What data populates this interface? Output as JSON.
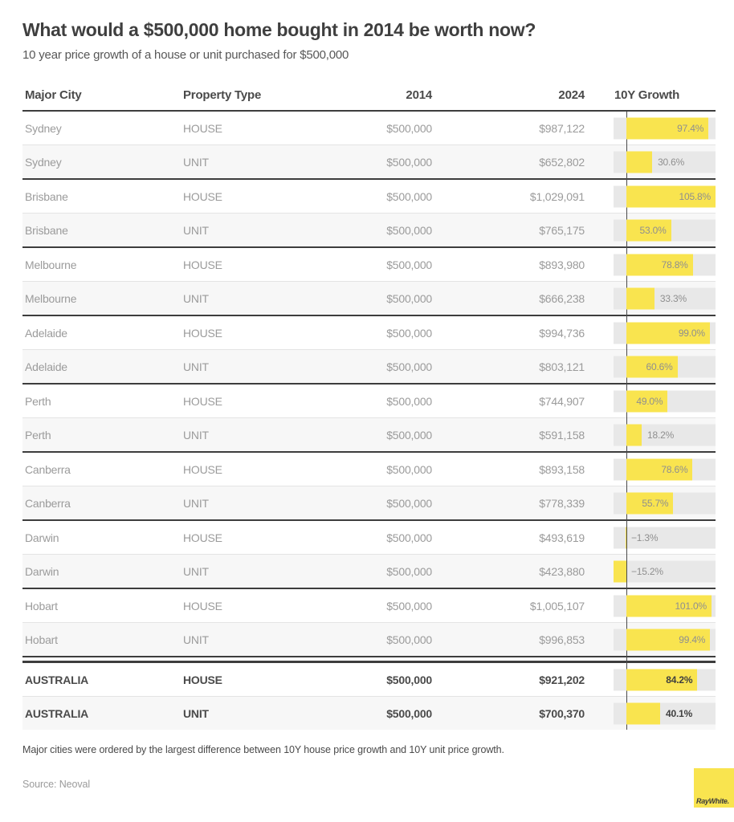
{
  "title": "What would a $500,000 home bought in 2014 be worth now?",
  "subtitle": "10 year price growth of a house or unit purchased for $500,000",
  "columns": {
    "city": "Major City",
    "type": "Property Type",
    "y2014": "2014",
    "y2024": "2024",
    "growth": "10Y Growth"
  },
  "rows": [
    {
      "city": "Sydney",
      "type": "HOUSE",
      "v2014": "$500,000",
      "v2024": "$987,122",
      "growth": 97.4,
      "growth_label": "97.4%",
      "bold": false
    },
    {
      "city": "Sydney",
      "type": "UNIT",
      "v2014": "$500,000",
      "v2024": "$652,802",
      "growth": 30.6,
      "growth_label": "30.6%",
      "bold": false
    },
    {
      "city": "Brisbane",
      "type": "HOUSE",
      "v2014": "$500,000",
      "v2024": "$1,029,091",
      "growth": 105.8,
      "growth_label": "105.8%",
      "bold": false
    },
    {
      "city": "Brisbane",
      "type": "UNIT",
      "v2014": "$500,000",
      "v2024": "$765,175",
      "growth": 53.0,
      "growth_label": "53.0%",
      "bold": false
    },
    {
      "city": "Melbourne",
      "type": "HOUSE",
      "v2014": "$500,000",
      "v2024": "$893,980",
      "growth": 78.8,
      "growth_label": "78.8%",
      "bold": false
    },
    {
      "city": "Melbourne",
      "type": "UNIT",
      "v2014": "$500,000",
      "v2024": "$666,238",
      "growth": 33.3,
      "growth_label": "33.3%",
      "bold": false
    },
    {
      "city": "Adelaide",
      "type": "HOUSE",
      "v2014": "$500,000",
      "v2024": "$994,736",
      "growth": 99.0,
      "growth_label": "99.0%",
      "bold": false
    },
    {
      "city": "Adelaide",
      "type": "UNIT",
      "v2014": "$500,000",
      "v2024": "$803,121",
      "growth": 60.6,
      "growth_label": "60.6%",
      "bold": false
    },
    {
      "city": "Perth",
      "type": "HOUSE",
      "v2014": "$500,000",
      "v2024": "$744,907",
      "growth": 49.0,
      "growth_label": "49.0%",
      "bold": false
    },
    {
      "city": "Perth",
      "type": "UNIT",
      "v2014": "$500,000",
      "v2024": "$591,158",
      "growth": 18.2,
      "growth_label": "18.2%",
      "bold": false
    },
    {
      "city": "Canberra",
      "type": "HOUSE",
      "v2014": "$500,000",
      "v2024": "$893,158",
      "growth": 78.6,
      "growth_label": "78.6%",
      "bold": false
    },
    {
      "city": "Canberra",
      "type": "UNIT",
      "v2014": "$500,000",
      "v2024": "$778,339",
      "growth": 55.7,
      "growth_label": "55.7%",
      "bold": false
    },
    {
      "city": "Darwin",
      "type": "HOUSE",
      "v2014": "$500,000",
      "v2024": "$493,619",
      "growth": -1.3,
      "growth_label": "−1.3%",
      "bold": false
    },
    {
      "city": "Darwin",
      "type": "UNIT",
      "v2014": "$500,000",
      "v2024": "$423,880",
      "growth": -15.2,
      "growth_label": "−15.2%",
      "bold": false
    },
    {
      "city": "Hobart",
      "type": "HOUSE",
      "v2014": "$500,000",
      "v2024": "$1,005,107",
      "growth": 101.0,
      "growth_label": "101.0%",
      "bold": false
    },
    {
      "city": "Hobart",
      "type": "UNIT",
      "v2014": "$500,000",
      "v2024": "$996,853",
      "growth": 99.4,
      "growth_label": "99.4%",
      "bold": false
    },
    {
      "city": "AUSTRALIA",
      "type": "HOUSE",
      "v2014": "$500,000",
      "v2024": "$921,202",
      "growth": 84.2,
      "growth_label": "84.2%",
      "bold": true
    },
    {
      "city": "AUSTRALIA",
      "type": "UNIT",
      "v2014": "$500,000",
      "v2024": "$700,370",
      "growth": 40.1,
      "growth_label": "40.1%",
      "bold": true
    }
  ],
  "chart_data": {
    "type": "bar",
    "orientation": "horizontal",
    "title": "What would a $500,000 home bought in 2014 be worth now?",
    "subtitle": "10 year price growth of a house or unit purchased for $500,000",
    "categories": [
      "Sydney HOUSE",
      "Sydney UNIT",
      "Brisbane HOUSE",
      "Brisbane UNIT",
      "Melbourne HOUSE",
      "Melbourne UNIT",
      "Adelaide HOUSE",
      "Adelaide UNIT",
      "Perth HOUSE",
      "Perth UNIT",
      "Canberra HOUSE",
      "Canberra UNIT",
      "Darwin HOUSE",
      "Darwin UNIT",
      "Hobart HOUSE",
      "Hobart UNIT",
      "AUSTRALIA HOUSE",
      "AUSTRALIA UNIT"
    ],
    "series": [
      {
        "name": "10Y Growth %",
        "values": [
          97.4,
          30.6,
          105.8,
          53.0,
          78.8,
          33.3,
          99.0,
          60.6,
          49.0,
          18.2,
          78.6,
          55.7,
          -1.3,
          -15.2,
          101.0,
          99.4,
          84.2,
          40.1
        ]
      },
      {
        "name": "2014 price",
        "values": [
          500000,
          500000,
          500000,
          500000,
          500000,
          500000,
          500000,
          500000,
          500000,
          500000,
          500000,
          500000,
          500000,
          500000,
          500000,
          500000,
          500000,
          500000
        ]
      },
      {
        "name": "2024 price",
        "values": [
          987122,
          652802,
          1029091,
          765175,
          893980,
          666238,
          994736,
          803121,
          744907,
          591158,
          893158,
          778339,
          493619,
          423880,
          1005107,
          996853,
          921202,
          700370
        ]
      }
    ],
    "xlim": [
      -15.2,
      105.8
    ],
    "grid": false,
    "legend": false,
    "bar_color": "#f9e44f",
    "track_color": "#e8e8e8",
    "axis_color": "#4a4a4a"
  },
  "footer": {
    "note": "Major cities were ordered by the largest difference between 10Y house price growth and 10Y unit price growth.",
    "source": "Source: Neoval"
  },
  "logo": {
    "text": "RayWhite."
  },
  "colors": {
    "accent_yellow": "#f9e44f",
    "track_gray": "#e8e8e8",
    "dark_text": "#3f3f3f",
    "muted_text": "#9b9b9b",
    "divider_dark": "#3d3d3d",
    "divider_light": "#e4e4e4",
    "alt_row_bg": "#f7f7f7"
  }
}
